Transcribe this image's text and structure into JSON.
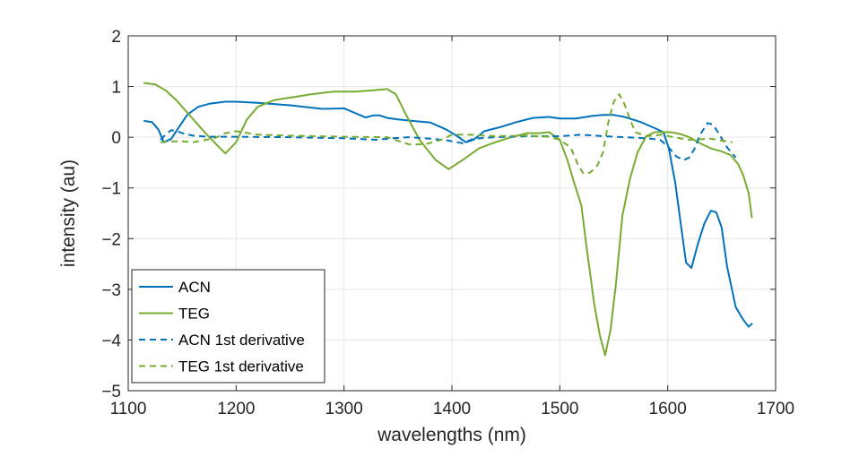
{
  "chart_data": {
    "type": "line",
    "xlabel": "wavelengths (nm)",
    "ylabel": "intensity (au)",
    "xlim": [
      1100,
      1700
    ],
    "ylim": [
      -5,
      2
    ],
    "xticks": [
      1100,
      1200,
      1300,
      1400,
      1500,
      1600,
      1700
    ],
    "xtick_labels": [
      "1100",
      "1200",
      "1300",
      "1400",
      "1500",
      "1600",
      "1700"
    ],
    "yticks": [
      2,
      1,
      0,
      -1,
      -2,
      -3,
      -4,
      -5
    ],
    "ytick_labels": [
      "2",
      "1",
      "0",
      "−1",
      "−2",
      "−3",
      "−4",
      "−5"
    ],
    "grid": true,
    "legend_position": "bottom-left",
    "series": [
      {
        "name": "ACN",
        "color": "#0072BD",
        "dash": "solid",
        "x": [
          1115,
          1122,
          1128,
          1133,
          1140,
          1147,
          1155,
          1165,
          1175,
          1190,
          1200,
          1220,
          1250,
          1280,
          1300,
          1310,
          1320,
          1327,
          1333,
          1340,
          1350,
          1360,
          1380,
          1395,
          1405,
          1413,
          1420,
          1430,
          1445,
          1460,
          1475,
          1490,
          1500,
          1515,
          1530,
          1540,
          1550,
          1560,
          1575,
          1588,
          1596,
          1601,
          1607,
          1613,
          1617,
          1622,
          1628,
          1634,
          1640,
          1645,
          1650,
          1655,
          1663,
          1670,
          1675,
          1678
        ],
        "y": [
          0.32,
          0.3,
          0.15,
          -0.1,
          -0.03,
          0.2,
          0.45,
          0.6,
          0.66,
          0.7,
          0.7,
          0.68,
          0.63,
          0.56,
          0.57,
          0.48,
          0.39,
          0.43,
          0.43,
          0.38,
          0.35,
          0.33,
          0.29,
          0.15,
          0.02,
          -0.1,
          -0.05,
          0.12,
          0.2,
          0.3,
          0.38,
          0.4,
          0.37,
          0.37,
          0.42,
          0.44,
          0.44,
          0.4,
          0.3,
          0.18,
          0.1,
          -0.22,
          -0.9,
          -1.85,
          -2.47,
          -2.58,
          -2.1,
          -1.7,
          -1.45,
          -1.48,
          -1.78,
          -2.55,
          -3.35,
          -3.6,
          -3.74,
          -3.68
        ]
      },
      {
        "name": "TEG",
        "color": "#77AC30",
        "dash": "solid",
        "x": [
          1115,
          1125,
          1135,
          1145,
          1155,
          1170,
          1183,
          1190,
          1200,
          1210,
          1220,
          1235,
          1250,
          1270,
          1290,
          1310,
          1330,
          1340,
          1348,
          1358,
          1370,
          1385,
          1397,
          1410,
          1425,
          1440,
          1455,
          1470,
          1482,
          1490,
          1500,
          1507,
          1513,
          1520,
          1525,
          1532,
          1537,
          1542,
          1547,
          1552,
          1558,
          1565,
          1572,
          1580,
          1588,
          1595,
          1603,
          1612,
          1620,
          1630,
          1640,
          1650,
          1658,
          1665,
          1670,
          1675,
          1678
        ],
        "y": [
          1.07,
          1.04,
          0.92,
          0.72,
          0.48,
          0.12,
          -0.17,
          -0.32,
          -0.1,
          0.35,
          0.6,
          0.73,
          0.78,
          0.85,
          0.9,
          0.9,
          0.93,
          0.95,
          0.85,
          0.42,
          -0.05,
          -0.45,
          -0.63,
          -0.45,
          -0.22,
          -0.1,
          0.0,
          0.08,
          0.08,
          0.1,
          -0.05,
          -0.45,
          -0.88,
          -1.35,
          -2.2,
          -3.3,
          -3.9,
          -4.3,
          -3.8,
          -2.9,
          -1.55,
          -0.82,
          -0.3,
          0.02,
          0.1,
          0.1,
          0.1,
          0.06,
          0.0,
          -0.12,
          -0.22,
          -0.28,
          -0.35,
          -0.52,
          -0.75,
          -1.1,
          -1.58
        ]
      },
      {
        "name": "ACN 1st derivative",
        "color": "#0072BD",
        "dash": "dashed",
        "x": [
          1130,
          1135,
          1140,
          1145,
          1150,
          1160,
          1175,
          1200,
          1250,
          1300,
          1330,
          1345,
          1360,
          1380,
          1395,
          1410,
          1420,
          1440,
          1470,
          1500,
          1520,
          1540,
          1560,
          1580,
          1593,
          1600,
          1608,
          1615,
          1620,
          1625,
          1630,
          1637,
          1642,
          1648,
          1655,
          1663
        ],
        "y": [
          -0.05,
          0.06,
          0.14,
          0.12,
          0.08,
          0.03,
          0.01,
          0.01,
          0.0,
          -0.02,
          -0.05,
          -0.02,
          0.0,
          -0.03,
          -0.06,
          -0.12,
          -0.03,
          0.0,
          0.02,
          0.02,
          0.05,
          0.02,
          0.0,
          -0.02,
          -0.05,
          -0.18,
          -0.38,
          -0.45,
          -0.4,
          -0.22,
          0.05,
          0.28,
          0.25,
          0.05,
          -0.2,
          -0.4
        ]
      },
      {
        "name": "TEG 1st derivative",
        "color": "#77AC30",
        "dash": "dashed",
        "x": [
          1130,
          1140,
          1150,
          1160,
          1170,
          1180,
          1190,
          1200,
          1220,
          1250,
          1300,
          1340,
          1360,
          1375,
          1390,
          1400,
          1415,
          1440,
          1470,
          1490,
          1500,
          1510,
          1517,
          1522,
          1528,
          1535,
          1540,
          1545,
          1550,
          1555,
          1560,
          1565,
          1570,
          1580,
          1595,
          1605,
          1620,
          1640,
          1660
        ],
        "y": [
          -0.1,
          -0.08,
          -0.08,
          -0.1,
          -0.06,
          -0.02,
          0.08,
          0.12,
          0.05,
          0.03,
          0.01,
          0.0,
          -0.14,
          -0.14,
          -0.05,
          0.05,
          0.05,
          0.02,
          0.03,
          0.01,
          -0.05,
          -0.2,
          -0.55,
          -0.72,
          -0.7,
          -0.55,
          -0.3,
          0.3,
          0.7,
          0.85,
          0.65,
          0.35,
          0.1,
          0.02,
          0.05,
          0.0,
          -0.05,
          -0.03,
          -0.1
        ]
      }
    ]
  }
}
